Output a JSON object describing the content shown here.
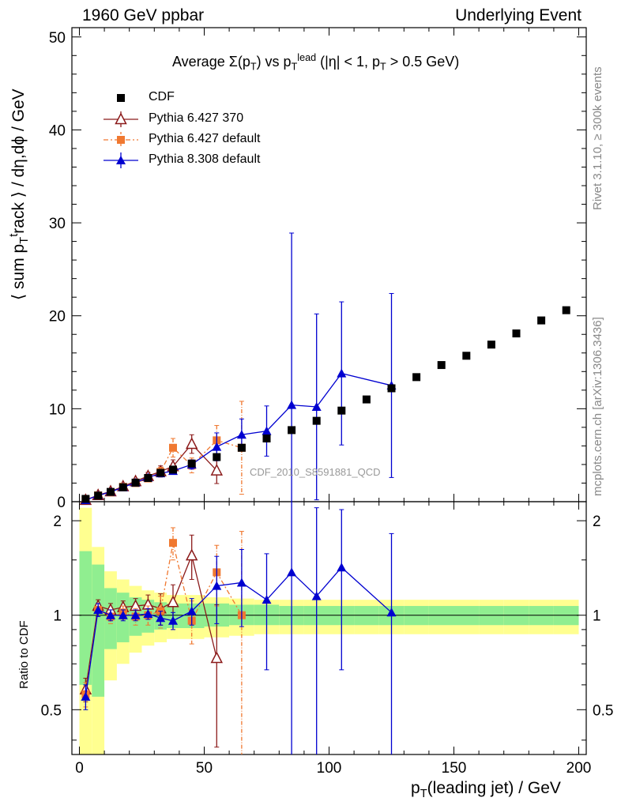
{
  "header": {
    "left": "1960 GeV ppbar",
    "right": "Underlying Event",
    "side_rivet": "Rivet 3.1.10, ≥ 300k events",
    "side_mcplots": "mcplots.cern.ch [arXiv:1306.3436]"
  },
  "labels": {
    "title_pre": "Average ",
    "title_sigma": "Σ(p",
    "title_sub_T": "T",
    "title_mid": ") vs p",
    "title_sup_lead": "lead",
    "title_tail": " (|η| < 1, p",
    "title_end": " > 0.5 GeV)",
    "ylabel_main": "⟨ sum p",
    "ylabel_sub": "T",
    "ylabel_sup": "t",
    "ylabel_rest": "rack ⟩ / dη,dϕ / GeV",
    "ylabel_ratio": "Ratio to CDF",
    "xlabel_pre": "p",
    "xlabel_sub": "T",
    "xlabel_rest": "(leading jet) / GeV",
    "watermark": "CDF_2010_S8591881_QCD"
  },
  "chart_data": {
    "type": "scatter",
    "xlim": [
      -3,
      203
    ],
    "main": {
      "ylim": [
        0,
        51
      ],
      "yticks": [
        0,
        10,
        20,
        30,
        40,
        50
      ],
      "ytick_labels": [
        "0",
        "10",
        "20",
        "30",
        "40",
        "50"
      ]
    },
    "ratio": {
      "scale": "log",
      "ylim": [
        0.36,
        2.3
      ],
      "yticks": [
        0.5,
        1,
        2
      ],
      "ytick_labels": [
        "0.5",
        "1",
        "2"
      ]
    },
    "xticks": [
      0,
      50,
      100,
      150,
      200
    ],
    "xtick_labels": [
      "0",
      "50",
      "100",
      "150",
      "200"
    ],
    "series": [
      {
        "name": "CDF",
        "color": "#000000",
        "marker": "square",
        "x": [
          2.5,
          7.5,
          12.5,
          17.5,
          22.5,
          27.5,
          32.5,
          37.5,
          45,
          55,
          65,
          75,
          85,
          95,
          105,
          115,
          125,
          135,
          145,
          155,
          165,
          175,
          185,
          195
        ],
        "y": [
          0.3,
          0.65,
          1.05,
          1.55,
          2.05,
          2.55,
          3.1,
          3.45,
          4.1,
          4.8,
          5.8,
          6.8,
          7.7,
          8.7,
          9.8,
          11.0,
          12.2,
          13.4,
          14.7,
          15.7,
          16.9,
          18.1,
          19.5,
          20.6
        ]
      },
      {
        "name": "Pythia 6.427 370",
        "color": "#8b1a1a",
        "marker": "open-triangle",
        "x": [
          2.5,
          7.5,
          12.5,
          17.5,
          22.5,
          27.5,
          32.5,
          37.5,
          45,
          55
        ],
        "y": [
          0.18,
          0.7,
          1.1,
          1.65,
          2.2,
          2.75,
          3.25,
          3.8,
          6.2,
          3.35
        ],
        "err": [
          0.05,
          0.1,
          0.15,
          0.2,
          0.25,
          0.4,
          0.6,
          0.7,
          1.0,
          1.4
        ],
        "ratio": [
          0.58,
          1.07,
          1.04,
          1.06,
          1.07,
          1.08,
          1.05,
          1.1,
          1.55,
          0.73
        ],
        "ratio_err": [
          0.05,
          0.05,
          0.05,
          0.05,
          0.06,
          0.08,
          0.12,
          0.15,
          0.25,
          0.35
        ]
      },
      {
        "name": "Pythia 6.427 default",
        "color": "#f07830",
        "marker": "square",
        "dash": true,
        "x": [
          2.5,
          7.5,
          12.5,
          17.5,
          22.5,
          27.5,
          32.5,
          37.5,
          45,
          55,
          65
        ],
        "y": [
          0.17,
          0.68,
          1.0,
          1.6,
          2.0,
          2.5,
          3.2,
          5.8,
          3.9,
          6.6,
          5.8
        ],
        "err": [
          0.05,
          0.1,
          0.15,
          0.2,
          0.25,
          0.3,
          0.5,
          1.0,
          0.8,
          1.6,
          5.0
        ],
        "ratio": [
          0.56,
          1.04,
          0.99,
          1.02,
          0.99,
          1.0,
          1.03,
          1.7,
          0.96,
          1.37,
          1.0
        ],
        "ratio_err": [
          0.05,
          0.05,
          0.05,
          0.05,
          0.06,
          0.07,
          0.12,
          0.2,
          0.15,
          0.3,
          0.85
        ]
      },
      {
        "name": "Pythia 8.308 default",
        "color": "#0000d0",
        "marker": "triangle",
        "x": [
          2.5,
          7.5,
          12.5,
          17.5,
          22.5,
          27.5,
          32.5,
          37.5,
          45,
          55,
          65,
          75,
          85,
          95,
          105,
          125
        ],
        "y": [
          0.17,
          0.67,
          1.05,
          1.55,
          2.05,
          2.6,
          3.05,
          3.3,
          4.0,
          5.9,
          7.2,
          7.6,
          10.4,
          10.2,
          13.8,
          12.5
        ],
        "err": [
          0.05,
          0.1,
          0.15,
          0.15,
          0.2,
          0.25,
          0.3,
          0.35,
          0.5,
          1.5,
          1.7,
          2.7,
          18.5,
          10.0,
          7.7,
          9.9
        ],
        "ratio": [
          0.55,
          1.04,
          1.0,
          1.0,
          1.0,
          1.01,
          0.98,
          0.96,
          1.03,
          1.24,
          1.27,
          1.12,
          1.37,
          1.15,
          1.42,
          1.02
        ],
        "ratio_err": [
          0.05,
          0.05,
          0.04,
          0.04,
          0.04,
          0.04,
          0.05,
          0.06,
          0.1,
          0.3,
          0.35,
          0.45,
          2.3,
          1.05,
          0.75,
          0.8
        ]
      }
    ],
    "ratio_bands": [
      {
        "x0": 0,
        "x1": 5,
        "inner": [
          0.6,
          1.6
        ],
        "outer": [
          0.2,
          2.2
        ]
      },
      {
        "x0": 5,
        "x1": 10,
        "inner": [
          0.55,
          1.45
        ],
        "outer": [
          0.3,
          1.65
        ]
      },
      {
        "x0": 10,
        "x1": 15,
        "inner": [
          0.78,
          1.22
        ],
        "outer": [
          0.62,
          1.38
        ]
      },
      {
        "x0": 15,
        "x1": 20,
        "inner": [
          0.82,
          1.18
        ],
        "outer": [
          0.7,
          1.3
        ]
      },
      {
        "x0": 20,
        "x1": 25,
        "inner": [
          0.86,
          1.14
        ],
        "outer": [
          0.76,
          1.24
        ]
      },
      {
        "x0": 25,
        "x1": 30,
        "inner": [
          0.88,
          1.12
        ],
        "outer": [
          0.8,
          1.2
        ]
      },
      {
        "x0": 30,
        "x1": 35,
        "inner": [
          0.9,
          1.1
        ],
        "outer": [
          0.82,
          1.18
        ]
      },
      {
        "x0": 35,
        "x1": 40,
        "inner": [
          0.91,
          1.09
        ],
        "outer": [
          0.84,
          1.16
        ]
      },
      {
        "x0": 40,
        "x1": 50,
        "inner": [
          0.91,
          1.09
        ],
        "outer": [
          0.84,
          1.16
        ]
      },
      {
        "x0": 50,
        "x1": 60,
        "inner": [
          0.92,
          1.09
        ],
        "outer": [
          0.85,
          1.14
        ]
      },
      {
        "x0": 60,
        "x1": 70,
        "inner": [
          0.93,
          1.08
        ],
        "outer": [
          0.86,
          1.13
        ]
      },
      {
        "x0": 70,
        "x1": 80,
        "inner": [
          0.93,
          1.08
        ],
        "outer": [
          0.87,
          1.12
        ]
      },
      {
        "x0": 80,
        "x1": 90,
        "inner": [
          0.93,
          1.07
        ],
        "outer": [
          0.87,
          1.12
        ]
      },
      {
        "x0": 90,
        "x1": 100,
        "inner": [
          0.93,
          1.07
        ],
        "outer": [
          0.87,
          1.12
        ]
      },
      {
        "x0": 100,
        "x1": 110,
        "inner": [
          0.93,
          1.07
        ],
        "outer": [
          0.87,
          1.12
        ]
      },
      {
        "x0": 110,
        "x1": 120,
        "inner": [
          0.93,
          1.07
        ],
        "outer": [
          0.87,
          1.12
        ]
      },
      {
        "x0": 120,
        "x1": 130,
        "inner": [
          0.93,
          1.07
        ],
        "outer": [
          0.87,
          1.12
        ]
      },
      {
        "x0": 130,
        "x1": 140,
        "inner": [
          0.93,
          1.07
        ],
        "outer": [
          0.87,
          1.12
        ]
      },
      {
        "x0": 140,
        "x1": 150,
        "inner": [
          0.93,
          1.07
        ],
        "outer": [
          0.87,
          1.12
        ]
      },
      {
        "x0": 150,
        "x1": 160,
        "inner": [
          0.93,
          1.07
        ],
        "outer": [
          0.87,
          1.12
        ]
      },
      {
        "x0": 160,
        "x1": 170,
        "inner": [
          0.93,
          1.07
        ],
        "outer": [
          0.87,
          1.12
        ]
      },
      {
        "x0": 170,
        "x1": 180,
        "inner": [
          0.93,
          1.07
        ],
        "outer": [
          0.87,
          1.12
        ]
      },
      {
        "x0": 180,
        "x1": 190,
        "inner": [
          0.93,
          1.07
        ],
        "outer": [
          0.87,
          1.12
        ]
      },
      {
        "x0": 190,
        "x1": 200,
        "inner": [
          0.93,
          1.07
        ],
        "outer": [
          0.87,
          1.12
        ]
      }
    ],
    "band_colors": {
      "inner": "#90ee90",
      "outer": "#ffff90"
    }
  }
}
